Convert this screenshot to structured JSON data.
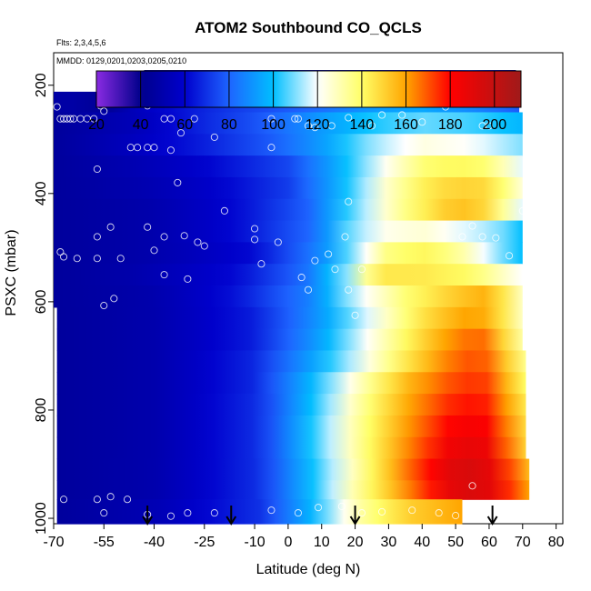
{
  "chart_data": {
    "type": "heatmap",
    "title": "ATOM2 Southbound CO_QCLS",
    "annotations": [
      "Flts: 2,3,4,5,6",
      "MMDD: 0129,0201,0203,0205,0210"
    ],
    "xlabel": "Latitude (deg N)",
    "ylabel": "PSXC (mbar)",
    "xlim": [
      -70,
      82
    ],
    "ylim": [
      1010,
      140
    ],
    "y_reversed": true,
    "x_ticks": [
      -70,
      -55,
      -40,
      -25,
      -10,
      0,
      10,
      20,
      30,
      40,
      50,
      60,
      70,
      80
    ],
    "y_ticks": [
      200,
      400,
      600,
      800,
      1000
    ],
    "colorbar": {
      "ticks": [
        20,
        40,
        60,
        80,
        100,
        120,
        140,
        160,
        180,
        200
      ],
      "range": [
        20,
        212
      ],
      "colors": [
        "#8a2be2",
        "#00008b",
        "#0000cd",
        "#1e64ff",
        "#00bfff",
        "#ffffff",
        "#ffff66",
        "#ffa500",
        "#ff0000",
        "#a01a1a"
      ]
    },
    "layers": [
      {
        "p_top": 172,
        "p_bot": 212,
        "lat_min": -43,
        "lat_max": 68,
        "anchors": [
          [
            -43,
            45
          ],
          [
            0,
            45
          ],
          [
            20,
            45
          ],
          [
            40,
            55
          ],
          [
            55,
            75
          ],
          [
            68,
            40
          ]
        ]
      },
      {
        "p_top": 212,
        "p_bot": 250,
        "lat_min": -70,
        "lat_max": 69,
        "anchors": [
          [
            -70,
            48
          ],
          [
            -60,
            48
          ],
          [
            -56,
            40
          ],
          [
            -45,
            56
          ],
          [
            -20,
            70
          ],
          [
            0,
            78
          ],
          [
            15,
            85
          ],
          [
            25,
            92
          ],
          [
            40,
            95
          ],
          [
            55,
            88
          ],
          [
            69,
            78
          ]
        ]
      },
      {
        "p_top": 250,
        "p_bot": 290,
        "lat_min": -70,
        "lat_max": 70,
        "anchors": [
          [
            -70,
            45
          ],
          [
            -45,
            54
          ],
          [
            -25,
            68
          ],
          [
            -10,
            76
          ],
          [
            10,
            92
          ],
          [
            25,
            102
          ],
          [
            40,
            108
          ],
          [
            55,
            105
          ],
          [
            70,
            98
          ]
        ]
      },
      {
        "p_top": 290,
        "p_bot": 330,
        "lat_min": -70,
        "lat_max": 70,
        "anchors": [
          [
            -70,
            45
          ],
          [
            -45,
            56
          ],
          [
            -25,
            66
          ],
          [
            -5,
            78
          ],
          [
            10,
            92
          ],
          [
            25,
            112
          ],
          [
            40,
            124
          ],
          [
            55,
            120
          ],
          [
            70,
            110
          ]
        ]
      },
      {
        "p_top": 330,
        "p_bot": 370,
        "lat_min": -70,
        "lat_max": 70,
        "anchors": [
          [
            -70,
            45
          ],
          [
            -45,
            52
          ],
          [
            -25,
            60
          ],
          [
            0,
            74
          ],
          [
            15,
            96
          ],
          [
            28,
            120
          ],
          [
            40,
            138
          ],
          [
            50,
            142
          ],
          [
            60,
            138
          ],
          [
            70,
            118
          ]
        ]
      },
      {
        "p_top": 370,
        "p_bot": 410,
        "lat_min": -70,
        "lat_max": 70,
        "anchors": [
          [
            -70,
            45
          ],
          [
            -40,
            52
          ],
          [
            -20,
            60
          ],
          [
            0,
            72
          ],
          [
            15,
            96
          ],
          [
            30,
            128
          ],
          [
            42,
            145
          ],
          [
            50,
            150
          ],
          [
            60,
            148
          ],
          [
            70,
            125
          ]
        ]
      },
      {
        "p_top": 410,
        "p_bot": 450,
        "lat_min": -70,
        "lat_max": 70,
        "anchors": [
          [
            -70,
            45
          ],
          [
            -40,
            50
          ],
          [
            -15,
            62
          ],
          [
            5,
            78
          ],
          [
            18,
            104
          ],
          [
            32,
            132
          ],
          [
            42,
            145
          ],
          [
            50,
            155
          ],
          [
            58,
            150
          ],
          [
            70,
            118
          ]
        ]
      },
      {
        "p_top": 450,
        "p_bot": 490,
        "lat_min": -70,
        "lat_max": 70,
        "anchors": [
          [
            -70,
            45
          ],
          [
            -40,
            50
          ],
          [
            -15,
            62
          ],
          [
            8,
            82
          ],
          [
            18,
            108
          ],
          [
            28,
            122
          ],
          [
            40,
            126
          ],
          [
            52,
            118
          ],
          [
            62,
            112
          ],
          [
            70,
            100
          ]
        ]
      },
      {
        "p_top": 490,
        "p_bot": 530,
        "lat_min": -70,
        "lat_max": 70,
        "anchors": [
          [
            -70,
            45
          ],
          [
            -40,
            50
          ],
          [
            -10,
            62
          ],
          [
            10,
            88
          ],
          [
            20,
            112
          ],
          [
            30,
            138
          ],
          [
            42,
            142
          ],
          [
            52,
            132
          ],
          [
            62,
            112
          ],
          [
            70,
            100
          ]
        ]
      },
      {
        "p_top": 530,
        "p_bot": 570,
        "lat_min": -70,
        "lat_max": 70,
        "anchors": [
          [
            -70,
            45
          ],
          [
            -45,
            50
          ],
          [
            -15,
            62
          ],
          [
            5,
            82
          ],
          [
            18,
            112
          ],
          [
            26,
            145
          ],
          [
            40,
            145
          ],
          [
            55,
            140
          ],
          [
            70,
            120
          ]
        ]
      },
      {
        "p_top": 570,
        "p_bot": 610,
        "lat_min": -70,
        "lat_max": 70,
        "anchors": [
          [
            -70,
            45
          ],
          [
            -40,
            50
          ],
          [
            -15,
            64
          ],
          [
            8,
            88
          ],
          [
            20,
            116
          ],
          [
            35,
            138
          ],
          [
            50,
            152
          ],
          [
            60,
            158
          ],
          [
            70,
            128
          ]
        ]
      },
      {
        "p_top": 610,
        "p_bot": 650,
        "lat_min": -69,
        "lat_max": 70,
        "anchors": [
          [
            -69,
            45
          ],
          [
            -40,
            50
          ],
          [
            -10,
            66
          ],
          [
            10,
            92
          ],
          [
            25,
            120
          ],
          [
            40,
            146
          ],
          [
            52,
            160
          ],
          [
            60,
            158
          ],
          [
            70,
            128
          ]
        ]
      },
      {
        "p_top": 650,
        "p_bot": 690,
        "lat_min": -69,
        "lat_max": 70,
        "anchors": [
          [
            -69,
            45
          ],
          [
            -40,
            50
          ],
          [
            -10,
            66
          ],
          [
            10,
            94
          ],
          [
            22,
            118
          ],
          [
            38,
            146
          ],
          [
            50,
            165
          ],
          [
            58,
            168
          ],
          [
            70,
            132
          ]
        ]
      },
      {
        "p_top": 690,
        "p_bot": 730,
        "lat_min": -69,
        "lat_max": 71,
        "anchors": [
          [
            -69,
            45
          ],
          [
            -40,
            50
          ],
          [
            -10,
            68
          ],
          [
            10,
            98
          ],
          [
            22,
            120
          ],
          [
            38,
            150
          ],
          [
            50,
            168
          ],
          [
            58,
            172
          ],
          [
            71,
            135
          ]
        ]
      },
      {
        "p_top": 730,
        "p_bot": 770,
        "lat_min": -69,
        "lat_max": 71,
        "anchors": [
          [
            -69,
            45
          ],
          [
            -40,
            50
          ],
          [
            -10,
            68
          ],
          [
            8,
            100
          ],
          [
            20,
            126
          ],
          [
            35,
            155
          ],
          [
            48,
            170
          ],
          [
            58,
            176
          ],
          [
            71,
            140
          ]
        ]
      },
      {
        "p_top": 770,
        "p_bot": 810,
        "lat_min": -69,
        "lat_max": 71,
        "anchors": [
          [
            -69,
            45
          ],
          [
            -40,
            50
          ],
          [
            -8,
            70
          ],
          [
            8,
            102
          ],
          [
            20,
            130
          ],
          [
            35,
            158
          ],
          [
            48,
            175
          ],
          [
            58,
            180
          ],
          [
            71,
            145
          ]
        ]
      },
      {
        "p_top": 810,
        "p_bot": 850,
        "lat_min": -69,
        "lat_max": 71,
        "anchors": [
          [
            -69,
            45
          ],
          [
            -40,
            50
          ],
          [
            -8,
            70
          ],
          [
            8,
            104
          ],
          [
            20,
            132
          ],
          [
            35,
            160
          ],
          [
            48,
            180
          ],
          [
            58,
            185
          ],
          [
            71,
            148
          ]
        ]
      },
      {
        "p_top": 850,
        "p_bot": 890,
        "lat_min": -69,
        "lat_max": 71,
        "anchors": [
          [
            -69,
            45
          ],
          [
            -40,
            50
          ],
          [
            -8,
            70
          ],
          [
            8,
            104
          ],
          [
            20,
            132
          ],
          [
            35,
            162
          ],
          [
            48,
            185
          ],
          [
            58,
            190
          ],
          [
            71,
            150
          ]
        ]
      },
      {
        "p_top": 890,
        "p_bot": 930,
        "lat_min": -69,
        "lat_max": 72,
        "anchors": [
          [
            -69,
            45
          ],
          [
            -40,
            50
          ],
          [
            -8,
            70
          ],
          [
            8,
            102
          ],
          [
            20,
            130
          ],
          [
            35,
            165
          ],
          [
            48,
            190
          ],
          [
            58,
            195
          ],
          [
            72,
            155
          ]
        ]
      },
      {
        "p_top": 930,
        "p_bot": 965,
        "lat_min": -69,
        "lat_max": 72,
        "anchors": [
          [
            -69,
            45
          ],
          [
            -40,
            50
          ],
          [
            -8,
            70
          ],
          [
            8,
            102
          ],
          [
            20,
            132
          ],
          [
            35,
            162
          ],
          [
            48,
            188
          ],
          [
            58,
            195
          ],
          [
            72,
            160
          ]
        ]
      },
      {
        "p_top": 965,
        "p_bot": 1010,
        "lat_min": -69,
        "lat_max": 52,
        "anchors": [
          [
            -69,
            45
          ],
          [
            -40,
            52
          ],
          [
            -8,
            70
          ],
          [
            8,
            100
          ],
          [
            20,
            130
          ],
          [
            35,
            150
          ],
          [
            52,
            160
          ]
        ]
      }
    ],
    "sample_points": [
      [
        -43,
        200
      ],
      [
        -41,
        200
      ],
      [
        -38,
        200
      ],
      [
        -42,
        238
      ],
      [
        69,
        200
      ],
      [
        66,
        200
      ],
      [
        -69,
        240
      ],
      [
        -68,
        262
      ],
      [
        -67,
        262
      ],
      [
        -66,
        262
      ],
      [
        -65,
        262
      ],
      [
        -64,
        262
      ],
      [
        -62,
        262
      ],
      [
        -60,
        262
      ],
      [
        -58,
        262
      ],
      [
        -56,
        230
      ],
      [
        -56,
        238
      ],
      [
        -55,
        248
      ],
      [
        -37,
        262
      ],
      [
        -35,
        262
      ],
      [
        -28,
        262
      ],
      [
        -21,
        228
      ],
      [
        -19,
        225
      ],
      [
        -18,
        222
      ],
      [
        -17,
        220
      ],
      [
        -16,
        218
      ],
      [
        -15,
        218
      ],
      [
        -5,
        262
      ],
      [
        2,
        262
      ],
      [
        3,
        262
      ],
      [
        6,
        275
      ],
      [
        8,
        278
      ],
      [
        13,
        275
      ],
      [
        18,
        260
      ],
      [
        25,
        275
      ],
      [
        28,
        255
      ],
      [
        34,
        255
      ],
      [
        40,
        268
      ],
      [
        47,
        240
      ],
      [
        58,
        275
      ],
      [
        60,
        275
      ],
      [
        -32,
        288
      ],
      [
        -22,
        296
      ],
      [
        -5,
        315
      ],
      [
        -47,
        315
      ],
      [
        -45,
        315
      ],
      [
        -42,
        315
      ],
      [
        -40,
        315
      ],
      [
        -35,
        320
      ],
      [
        -33,
        380
      ],
      [
        -57,
        355
      ],
      [
        18,
        415
      ],
      [
        -57,
        480
      ],
      [
        -53,
        462
      ],
      [
        -42,
        462
      ],
      [
        -37,
        480
      ],
      [
        -31,
        478
      ],
      [
        -27,
        490
      ],
      [
        -25,
        497
      ],
      [
        -19,
        432
      ],
      [
        -10,
        465
      ],
      [
        -10,
        485
      ],
      [
        -8,
        530
      ],
      [
        -3,
        490
      ],
      [
        4,
        555
      ],
      [
        6,
        578
      ],
      [
        8,
        524
      ],
      [
        12,
        512
      ],
      [
        14,
        540
      ],
      [
        17,
        480
      ],
      [
        -68,
        508
      ],
      [
        -67,
        517
      ],
      [
        -63,
        520
      ],
      [
        -57,
        520
      ],
      [
        -50,
        520
      ],
      [
        -40,
        505
      ],
      [
        -37,
        550
      ],
      [
        -30,
        558
      ],
      [
        -55,
        607
      ],
      [
        -52,
        594
      ],
      [
        18,
        578
      ],
      [
        20,
        625
      ],
      [
        22,
        540
      ],
      [
        52,
        480
      ],
      [
        55,
        460
      ],
      [
        58,
        480
      ],
      [
        62,
        482
      ],
      [
        66,
        515
      ],
      [
        70,
        432
      ],
      [
        -67,
        965
      ],
      [
        -57,
        965
      ],
      [
        -53,
        960
      ],
      [
        -48,
        965
      ],
      [
        -55,
        990
      ],
      [
        -42,
        993
      ],
      [
        -35,
        996
      ],
      [
        -30,
        990
      ],
      [
        -22,
        990
      ],
      [
        -5,
        985
      ],
      [
        3,
        990
      ],
      [
        9,
        980
      ],
      [
        16,
        978
      ],
      [
        22,
        990
      ],
      [
        28,
        988
      ],
      [
        37,
        985
      ],
      [
        45,
        990
      ],
      [
        50,
        995
      ],
      [
        55,
        940
      ]
    ],
    "arrows": [
      -42,
      -17,
      20,
      61
    ]
  }
}
